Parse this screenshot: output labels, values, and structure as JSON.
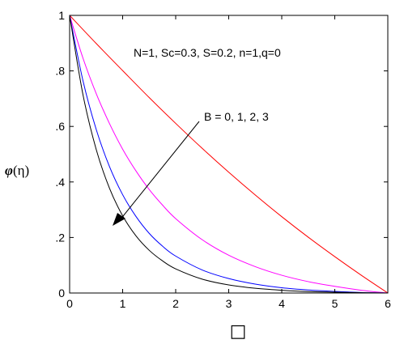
{
  "chart_data": {
    "type": "line",
    "title": "",
    "xlabel": "□",
    "ylabel_symbol": "φ",
    "ylabel_arg": "(η)",
    "xlim": [
      0,
      6
    ],
    "ylim": [
      0,
      1
    ],
    "x_ticks": [
      0,
      1,
      2,
      3,
      4,
      5,
      6
    ],
    "x_tick_labels": [
      "0",
      "1",
      "2",
      "3",
      "4",
      "5",
      "6"
    ],
    "y_ticks": [
      0,
      0.2,
      0.4,
      0.6,
      0.8,
      1
    ],
    "y_tick_labels": [
      "0",
      ".2",
      ".4",
      ".6",
      ".8",
      "1"
    ],
    "grid": false,
    "annotations": {
      "params": "N=1, Sc=0.3, S=0.2, n=1,q=0",
      "arrow_label": "B = 0, 1, 2, 3"
    },
    "series": [
      {
        "color": "#ff0000",
        "x": [
          0,
          0.5,
          1,
          1.5,
          2,
          2.5,
          3,
          3.5,
          4,
          4.5,
          5,
          5.5,
          6
        ],
        "y": [
          1.0,
          0.899,
          0.801,
          0.704,
          0.611,
          0.521,
          0.435,
          0.353,
          0.275,
          0.201,
          0.131,
          0.064,
          0.0
        ]
      },
      {
        "color": "#ff00ff",
        "x": [
          0,
          0.25,
          0.5,
          0.75,
          1,
          1.25,
          1.5,
          1.75,
          2,
          2.5,
          3,
          3.5,
          4,
          4.5,
          5,
          5.5,
          6
        ],
        "y": [
          1.0,
          0.847,
          0.719,
          0.611,
          0.518,
          0.44,
          0.373,
          0.317,
          0.268,
          0.192,
          0.136,
          0.095,
          0.064,
          0.041,
          0.024,
          0.01,
          0.0
        ]
      },
      {
        "color": "#0000ff",
        "x": [
          0,
          0.25,
          0.5,
          0.75,
          1,
          1.25,
          1.5,
          1.75,
          2,
          2.5,
          3,
          3.5,
          4,
          4.5,
          5,
          5.5,
          6
        ],
        "y": [
          1.0,
          0.766,
          0.59,
          0.456,
          0.354,
          0.276,
          0.215,
          0.169,
          0.133,
          0.083,
          0.052,
          0.032,
          0.019,
          0.011,
          0.006,
          0.002,
          0.0
        ]
      },
      {
        "color": "#000000",
        "x": [
          0,
          0.25,
          0.5,
          0.75,
          1,
          1.25,
          1.5,
          1.75,
          2,
          2.5,
          3,
          3.5,
          4,
          4.5,
          5,
          5.5,
          6
        ],
        "y": [
          1.0,
          0.716,
          0.518,
          0.378,
          0.278,
          0.206,
          0.154,
          0.116,
          0.087,
          0.05,
          0.029,
          0.017,
          0.01,
          0.005,
          0.003,
          0.001,
          0.0
        ]
      }
    ]
  }
}
